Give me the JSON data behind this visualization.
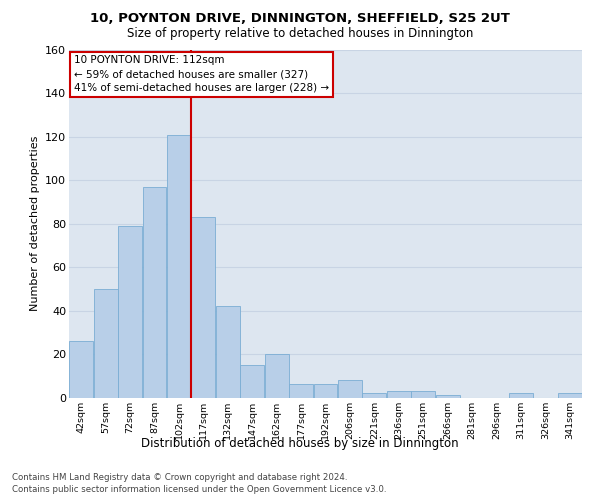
{
  "title": "10, POYNTON DRIVE, DINNINGTON, SHEFFIELD, S25 2UT",
  "subtitle": "Size of property relative to detached houses in Dinnington",
  "xlabel": "Distribution of detached houses by size in Dinnington",
  "ylabel": "Number of detached properties",
  "bar_labels": [
    "42sqm",
    "57sqm",
    "72sqm",
    "87sqm",
    "102sqm",
    "117sqm",
    "132sqm",
    "147sqm",
    "162sqm",
    "177sqm",
    "192sqm",
    "206sqm",
    "221sqm",
    "236sqm",
    "251sqm",
    "266sqm",
    "281sqm",
    "296sqm",
    "311sqm",
    "326sqm",
    "341sqm"
  ],
  "bar_values": [
    26,
    50,
    79,
    97,
    121,
    83,
    42,
    15,
    20,
    6,
    6,
    8,
    2,
    3,
    3,
    1,
    0,
    0,
    2,
    0,
    2
  ],
  "bar_color": "#b8cfe8",
  "bar_edge_color": "#7aadd4",
  "vline_color": "#cc0000",
  "annotation_text": "10 POYNTON DRIVE: 112sqm\n← 59% of detached houses are smaller (327)\n41% of semi-detached houses are larger (228) →",
  "annotation_box_facecolor": "#ffffff",
  "annotation_box_edgecolor": "#cc0000",
  "ylim": [
    0,
    160
  ],
  "yticks": [
    0,
    20,
    40,
    60,
    80,
    100,
    120,
    140,
    160
  ],
  "grid_color": "#c8d4e4",
  "footer_text": "Contains HM Land Registry data © Crown copyright and database right 2024.\nContains public sector information licensed under the Open Government Licence v3.0.",
  "bg_color": "#dde6f0",
  "fig_bg_color": "#ffffff",
  "vline_position": 4.5
}
